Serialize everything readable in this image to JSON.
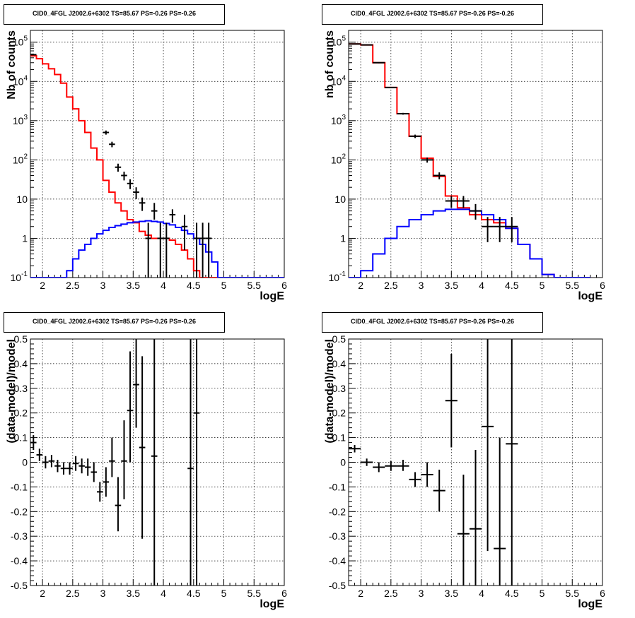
{
  "page": {
    "panel_titles": [
      "CID0_4FGL J2002.6+6302 TS=85.67 PS=-0.26 PS=-0.26",
      "CID0_4FGL J2002.6+6302 TS=85.67 PS=-0.26 PS=-0.26",
      "CID0_4FGL J2002.6+6302 TS=85.67 PS=-0.26 PS=-0.26",
      "CID0_4FGL J2002.6+6302 TS=85.67 PS=-0.26 PS=-0.26"
    ]
  },
  "chart_data": [
    {
      "type": "line",
      "title": "CID0_4FGL J2002.6+6302 TS=85.67 PS=-0.26 PS=-0.26",
      "xlabel": "logE",
      "ylabel": "Nb of counts",
      "xlim": [
        1.8,
        6.0
      ],
      "ylim": [
        0.1,
        200000
      ],
      "yscale": "log",
      "grid": true,
      "xticks": [
        "2",
        "2.5",
        "3",
        "3.5",
        "4",
        "4.5",
        "5",
        "5.5",
        "6"
      ],
      "yticks": [
        "10^-1",
        "1",
        "10",
        "10^2",
        "10^3",
        "10^4",
        "10^5"
      ],
      "bin_edges": [
        1.8,
        1.9,
        2.0,
        2.1,
        2.2,
        2.3,
        2.4,
        2.5,
        2.6,
        2.7,
        2.8,
        2.9,
        3.0,
        3.1,
        3.2,
        3.3,
        3.4,
        3.5,
        3.6,
        3.7,
        3.8,
        3.9,
        4.0,
        4.1,
        4.2,
        4.3,
        4.4,
        4.5,
        4.6,
        4.7,
        4.8,
        4.9,
        5.0,
        5.1,
        5.2,
        5.3,
        5.4,
        5.5,
        5.6,
        5.7,
        5.8,
        5.9,
        6.0
      ],
      "series": [
        {
          "color": "#ff0000",
          "style": "step",
          "values": [
            45000,
            38000,
            28000,
            21000,
            15000,
            9000,
            4000,
            2000,
            1000,
            500,
            200,
            100,
            30,
            15,
            8,
            5,
            3,
            2.5,
            1.5,
            1.2,
            1.0,
            1.0,
            1.0,
            0.9,
            0.7,
            0.5,
            0.3,
            0.15,
            0.1,
            0.1,
            0.1,
            0.1,
            0.1,
            0.1,
            0.1,
            0.1,
            0.1,
            0.1,
            0.1,
            0.1,
            0.1,
            0.1
          ]
        },
        {
          "color": "#0000ff",
          "style": "step",
          "values": [
            0.1,
            0.1,
            0.1,
            0.1,
            0.1,
            0.1,
            0.15,
            0.3,
            0.5,
            0.7,
            1.0,
            1.3,
            1.6,
            1.9,
            2.1,
            2.3,
            2.5,
            2.6,
            2.7,
            2.8,
            2.7,
            2.6,
            2.4,
            2.2,
            1.9,
            1.6,
            1.3,
            1.0,
            0.7,
            0.45,
            0.25,
            0.1,
            0.1,
            0.1,
            0.1,
            0.1,
            0.1,
            0.1,
            0.1,
            0.1,
            0.1,
            0.1
          ]
        }
      ],
      "points": [
        {
          "x": 1.85,
          "y": 48000,
          "xerr": 0.05,
          "ylo": 47000,
          "yhi": 49000
        },
        {
          "x": 3.05,
          "y": 500,
          "xerr": 0.05,
          "ylo": 440,
          "yhi": 560
        },
        {
          "x": 3.15,
          "y": 250,
          "xerr": 0.05,
          "ylo": 210,
          "yhi": 290
        },
        {
          "x": 3.25,
          "y": 65,
          "xerr": 0.05,
          "ylo": 50,
          "yhi": 80
        },
        {
          "x": 3.35,
          "y": 40,
          "xerr": 0.05,
          "ylo": 30,
          "yhi": 50
        },
        {
          "x": 3.45,
          "y": 25,
          "xerr": 0.05,
          "ylo": 18,
          "yhi": 32
        },
        {
          "x": 3.55,
          "y": 15,
          "xerr": 0.05,
          "ylo": 10,
          "yhi": 20
        },
        {
          "x": 3.65,
          "y": 8,
          "xerr": 0.05,
          "ylo": 5,
          "yhi": 11
        },
        {
          "x": 3.75,
          "y": 1,
          "xerr": 0.05,
          "ylo": 0.1,
          "yhi": 2.5
        },
        {
          "x": 3.85,
          "y": 5,
          "xerr": 0.05,
          "ylo": 3,
          "yhi": 8
        },
        {
          "x": 3.95,
          "y": 1,
          "xerr": 0.05,
          "ylo": 0.1,
          "yhi": 2.5
        },
        {
          "x": 4.05,
          "y": 1,
          "xerr": 0.05,
          "ylo": 0.1,
          "yhi": 2.5
        },
        {
          "x": 4.15,
          "y": 4,
          "xerr": 0.05,
          "ylo": 2.5,
          "yhi": 5.5
        },
        {
          "x": 4.35,
          "y": 2,
          "xerr": 0.05,
          "ylo": 0.5,
          "yhi": 4
        },
        {
          "x": 4.55,
          "y": 1,
          "xerr": 0.05,
          "ylo": 0.1,
          "yhi": 2.5
        },
        {
          "x": 4.65,
          "y": 1,
          "xerr": 0.05,
          "ylo": 0.1,
          "yhi": 2.5
        },
        {
          "x": 4.75,
          "y": 1,
          "xerr": 0.05,
          "ylo": 0.1,
          "yhi": 2.5
        }
      ]
    },
    {
      "type": "line",
      "title": "CID0_4FGL J2002.6+6302 TS=85.67 PS=-0.26 PS=-0.26",
      "xlabel": "logE",
      "ylabel": "nb of counts",
      "xlim": [
        1.8,
        6.0
      ],
      "ylim": [
        0.1,
        200000
      ],
      "yscale": "log",
      "grid": true,
      "xticks": [
        "2",
        "2.5",
        "3",
        "3.5",
        "4",
        "4.5",
        "5",
        "5.5",
        "6"
      ],
      "yticks": [
        "10^-1",
        "1",
        "10",
        "10^2",
        "10^3",
        "10^4",
        "10^5"
      ],
      "bin_edges": [
        1.8,
        2.0,
        2.2,
        2.4,
        2.6,
        2.8,
        3.0,
        3.2,
        3.4,
        3.6,
        3.8,
        4.0,
        4.2,
        4.4,
        4.6,
        4.8,
        5.0,
        5.2,
        5.4,
        5.6,
        5.8,
        6.0
      ],
      "series": [
        {
          "color": "#ff0000",
          "style": "step",
          "values": [
            90000,
            85000,
            30000,
            7000,
            1500,
            400,
            110,
            38,
            12,
            6,
            4,
            3,
            2.5,
            1.8,
            0.7,
            0.3,
            0.12,
            0.1,
            0.1,
            0.1
          ]
        },
        {
          "color": "#0000ff",
          "style": "step",
          "values": [
            0.1,
            0.15,
            0.4,
            1.0,
            2.0,
            3.0,
            4.0,
            5.0,
            5.5,
            5.5,
            5.0,
            4.0,
            3.0,
            1.8,
            0.7,
            0.3,
            0.12,
            0.1,
            0.1,
            0.1
          ]
        }
      ],
      "points": [
        {
          "x": 1.9,
          "y": 90000,
          "xerr": 0.1,
          "ylo": 88000,
          "yhi": 92000
        },
        {
          "x": 2.1,
          "y": 85000,
          "xerr": 0.1,
          "ylo": 84000,
          "yhi": 86000
        },
        {
          "x": 2.3,
          "y": 30000,
          "xerr": 0.1,
          "ylo": 29000,
          "yhi": 31000
        },
        {
          "x": 2.5,
          "y": 7000,
          "xerr": 0.1,
          "ylo": 6800,
          "yhi": 7200
        },
        {
          "x": 2.7,
          "y": 1500,
          "xerr": 0.1,
          "ylo": 1420,
          "yhi": 1580
        },
        {
          "x": 2.9,
          "y": 400,
          "xerr": 0.1,
          "ylo": 360,
          "yhi": 440
        },
        {
          "x": 3.1,
          "y": 100,
          "xerr": 0.1,
          "ylo": 85,
          "yhi": 115
        },
        {
          "x": 3.3,
          "y": 40,
          "xerr": 0.1,
          "ylo": 32,
          "yhi": 48
        },
        {
          "x": 3.5,
          "y": 9,
          "xerr": 0.1,
          "ylo": 6,
          "yhi": 12
        },
        {
          "x": 3.7,
          "y": 9,
          "xerr": 0.1,
          "ylo": 6,
          "yhi": 12
        },
        {
          "x": 3.9,
          "y": 5,
          "xerr": 0.1,
          "ylo": 3,
          "yhi": 7.5
        },
        {
          "x": 4.1,
          "y": 2,
          "xerr": 0.1,
          "ylo": 0.8,
          "yhi": 3.5
        },
        {
          "x": 4.3,
          "y": 2,
          "xerr": 0.1,
          "ylo": 0.8,
          "yhi": 3.5
        },
        {
          "x": 4.5,
          "y": 2,
          "xerr": 0.1,
          "ylo": 0.8,
          "yhi": 3.5
        }
      ]
    },
    {
      "type": "scatter",
      "title": "CID0_4FGL J2002.6+6302 TS=85.67 PS=-0.26 PS=-0.26",
      "xlabel": "logE",
      "ylabel": "(data-model)/model",
      "xlim": [
        1.8,
        6.0
      ],
      "ylim": [
        -0.5,
        0.5
      ],
      "grid": true,
      "xticks": [
        "2",
        "2.5",
        "3",
        "3.5",
        "4",
        "4.5",
        "5",
        "5.5",
        "6"
      ],
      "yticks": [
        "-0.5",
        "-0.4",
        "-0.3",
        "-0.2",
        "-0.1",
        "0",
        "0.1",
        "0.2",
        "0.3",
        "0.4",
        "0.5"
      ],
      "points": [
        {
          "x": 1.85,
          "y": 0.08,
          "xerr": 0.05,
          "ylo": 0.05,
          "yhi": 0.11
        },
        {
          "x": 1.95,
          "y": 0.03,
          "xerr": 0.05,
          "ylo": 0.005,
          "yhi": 0.055
        },
        {
          "x": 2.05,
          "y": 0.0,
          "xerr": 0.05,
          "ylo": -0.025,
          "yhi": 0.025
        },
        {
          "x": 2.15,
          "y": 0.005,
          "xerr": 0.05,
          "ylo": -0.02,
          "yhi": 0.03
        },
        {
          "x": 2.25,
          "y": -0.015,
          "xerr": 0.05,
          "ylo": -0.04,
          "yhi": 0.01
        },
        {
          "x": 2.35,
          "y": -0.025,
          "xerr": 0.05,
          "ylo": -0.05,
          "yhi": 0.0
        },
        {
          "x": 2.45,
          "y": -0.025,
          "xerr": 0.05,
          "ylo": -0.05,
          "yhi": 0.0
        },
        {
          "x": 2.55,
          "y": -0.005,
          "xerr": 0.05,
          "ylo": -0.035,
          "yhi": 0.025
        },
        {
          "x": 2.65,
          "y": -0.015,
          "xerr": 0.05,
          "ylo": -0.045,
          "yhi": 0.015
        },
        {
          "x": 2.75,
          "y": -0.02,
          "xerr": 0.05,
          "ylo": -0.055,
          "yhi": 0.015
        },
        {
          "x": 2.85,
          "y": -0.04,
          "xerr": 0.05,
          "ylo": -0.08,
          "yhi": 0.0
        },
        {
          "x": 2.95,
          "y": -0.12,
          "xerr": 0.05,
          "ylo": -0.16,
          "yhi": -0.08
        },
        {
          "x": 3.05,
          "y": -0.08,
          "xerr": 0.05,
          "ylo": -0.14,
          "yhi": -0.02
        },
        {
          "x": 3.15,
          "y": 0.005,
          "xerr": 0.05,
          "ylo": -0.06,
          "yhi": 0.1
        },
        {
          "x": 3.25,
          "y": -0.175,
          "xerr": 0.05,
          "ylo": -0.28,
          "yhi": -0.06
        },
        {
          "x": 3.35,
          "y": 0.005,
          "xerr": 0.05,
          "ylo": -0.15,
          "yhi": 0.17
        },
        {
          "x": 3.45,
          "y": 0.21,
          "xerr": 0.05,
          "ylo": 0.0,
          "yhi": 0.45
        },
        {
          "x": 3.55,
          "y": 0.315,
          "xerr": 0.05,
          "ylo": 0.14,
          "yhi": 0.5
        },
        {
          "x": 3.65,
          "y": 0.06,
          "xerr": 0.05,
          "ylo": -0.31,
          "yhi": 0.43
        },
        {
          "x": 3.85,
          "y": 0.025,
          "xerr": 0.05,
          "ylo": -0.5,
          "yhi": 0.5
        },
        {
          "x": 4.45,
          "y": -0.025,
          "xerr": 0.05,
          "ylo": -0.5,
          "yhi": 0.5
        },
        {
          "x": 4.55,
          "y": 0.2,
          "xerr": 0.05,
          "ylo": -0.5,
          "yhi": 0.5
        }
      ]
    },
    {
      "type": "scatter",
      "title": "CID0_4FGL J2002.6+6302 TS=85.67 PS=-0.26 PS=-0.26",
      "xlabel": "logE",
      "ylabel": "(data-model)/model",
      "xlim": [
        1.8,
        6.0
      ],
      "ylim": [
        -0.5,
        0.5
      ],
      "grid": true,
      "xticks": [
        "2",
        "2.5",
        "3",
        "3.5",
        "4",
        "4.5",
        "5",
        "5.5",
        "6"
      ],
      "yticks": [
        "-0.5",
        "-0.4",
        "-0.3",
        "-0.2",
        "-0.1",
        "0",
        "0.1",
        "0.2",
        "0.3",
        "0.4",
        "0.5"
      ],
      "points": [
        {
          "x": 1.9,
          "y": 0.055,
          "xerr": 0.1,
          "ylo": 0.04,
          "yhi": 0.07
        },
        {
          "x": 2.1,
          "y": 0.0,
          "xerr": 0.1,
          "ylo": -0.015,
          "yhi": 0.015
        },
        {
          "x": 2.3,
          "y": -0.02,
          "xerr": 0.1,
          "ylo": -0.04,
          "yhi": 0.0
        },
        {
          "x": 2.5,
          "y": -0.015,
          "xerr": 0.1,
          "ylo": -0.035,
          "yhi": 0.005
        },
        {
          "x": 2.7,
          "y": -0.015,
          "xerr": 0.1,
          "ylo": -0.035,
          "yhi": 0.01
        },
        {
          "x": 2.9,
          "y": -0.07,
          "xerr": 0.1,
          "ylo": -0.1,
          "yhi": -0.04
        },
        {
          "x": 3.1,
          "y": -0.05,
          "xerr": 0.1,
          "ylo": -0.1,
          "yhi": 0.0
        },
        {
          "x": 3.3,
          "y": -0.115,
          "xerr": 0.1,
          "ylo": -0.2,
          "yhi": -0.03
        },
        {
          "x": 3.5,
          "y": 0.25,
          "xerr": 0.1,
          "ylo": 0.06,
          "yhi": 0.44
        },
        {
          "x": 3.7,
          "y": -0.29,
          "xerr": 0.1,
          "ylo": -0.5,
          "yhi": -0.05
        },
        {
          "x": 3.9,
          "y": -0.27,
          "xerr": 0.1,
          "ylo": -0.5,
          "yhi": 0.05
        },
        {
          "x": 4.1,
          "y": 0.145,
          "xerr": 0.1,
          "ylo": -0.36,
          "yhi": 0.5
        },
        {
          "x": 4.3,
          "y": -0.35,
          "xerr": 0.1,
          "ylo": -0.5,
          "yhi": 0.1
        },
        {
          "x": 4.5,
          "y": 0.075,
          "xerr": 0.1,
          "ylo": -0.5,
          "yhi": 0.5
        }
      ]
    }
  ]
}
